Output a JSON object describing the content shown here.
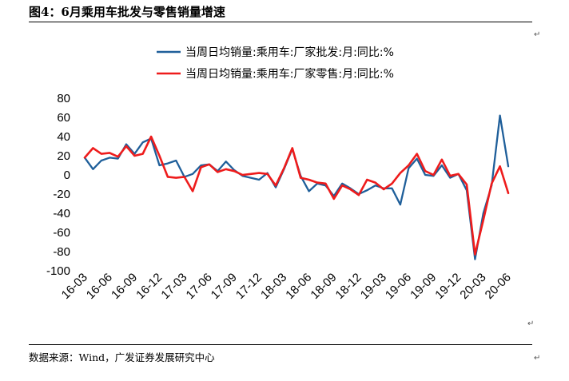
{
  "title": "图4：6月乘用车批发与零售销量增速",
  "source": "数据来源：Wind，广发证券发展研究中心",
  "para_mark": "↵",
  "chart_data": {
    "type": "line",
    "title": "图4：6月乘用车批发与零售销量增速",
    "xlabel": "",
    "ylabel": "",
    "ylim": [
      -100,
      80
    ],
    "yticks": [
      80,
      60,
      40,
      20,
      0,
      -20,
      -40,
      -60,
      -80,
      -100
    ],
    "grid": false,
    "legend_position": "top-center",
    "x": [
      "16-03",
      "16-04",
      "16-05",
      "16-06",
      "16-07",
      "16-08",
      "16-09",
      "16-10",
      "16-11",
      "16-12",
      "17-01",
      "17-02",
      "17-03",
      "17-04",
      "17-05",
      "17-06",
      "17-07",
      "17-08",
      "17-09",
      "17-10",
      "17-11",
      "17-12",
      "18-01",
      "18-02",
      "18-03",
      "18-04",
      "18-05",
      "18-06",
      "18-07",
      "18-08",
      "18-09",
      "18-10",
      "18-11",
      "18-12",
      "19-01",
      "19-02",
      "19-03",
      "19-04",
      "19-05",
      "19-06",
      "19-07",
      "19-08",
      "19-09",
      "19-10",
      "19-11",
      "19-12",
      "20-01",
      "20-02",
      "20-03",
      "20-04",
      "20-05",
      "20-06"
    ],
    "xtick_labels": [
      "16-03",
      "16-06",
      "16-09",
      "16-12",
      "17-03",
      "17-06",
      "17-09",
      "17-12",
      "18-03",
      "18-06",
      "18-09",
      "18-12",
      "19-03",
      "19-06",
      "19-09",
      "19-12",
      "20-03",
      "20-06"
    ],
    "series": [
      {
        "name": "当周日均销量:乘用车:厂家批发:月:同比:%",
        "color": "#1f5f9a",
        "values": [
          18,
          6,
          15,
          18,
          17,
          32,
          22,
          34,
          38,
          10,
          12,
          15,
          -2,
          1,
          10,
          11,
          4,
          14,
          5,
          -1,
          -3,
          -5,
          2,
          -13,
          6,
          27,
          -1,
          -17,
          -9,
          -11,
          -22,
          -9,
          -14,
          -20,
          -16,
          -11,
          -14,
          -14,
          -31,
          7,
          17,
          0,
          -1,
          10,
          -3,
          1,
          -16,
          -88,
          -40,
          -11,
          62,
          9
        ]
      },
      {
        "name": "当周日均销量:乘用车:厂家零售:月:同比:%",
        "color": "#ee1c1c",
        "values": [
          18,
          28,
          22,
          23,
          19,
          30,
          20,
          22,
          40,
          20,
          -2,
          -3,
          -2,
          -17,
          8,
          11,
          3,
          6,
          4,
          0,
          1,
          2,
          1,
          -11,
          7,
          28,
          -3,
          -5,
          -8,
          -9,
          -25,
          -11,
          -15,
          -21,
          -5,
          -8,
          -15,
          -9,
          2,
          10,
          22,
          4,
          0,
          16,
          -1,
          1,
          -10,
          -83,
          -47,
          -9,
          9,
          -19
        ]
      }
    ]
  }
}
